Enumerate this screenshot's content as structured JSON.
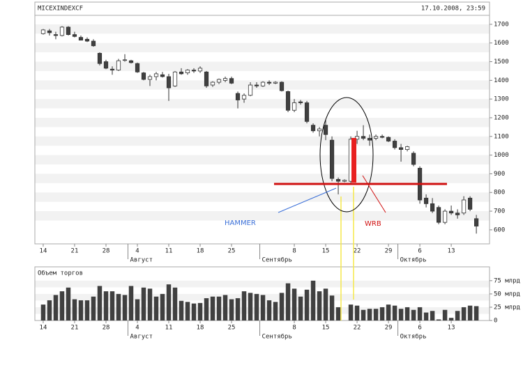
{
  "chart_data": [
    {
      "type": "candlestick",
      "title": "MICEXINDEXCF",
      "subtitle": "17.10.2008, 23:59",
      "open": [
        1650,
        1665,
        1645,
        1640,
        1685,
        1645,
        1630,
        1620,
        1610,
        1545,
        1500,
        1460,
        1455,
        1510,
        1505,
        1490,
        1440,
        1405,
        1420,
        1430,
        1420,
        1370,
        1445,
        1440,
        1455,
        1450,
        1445,
        1375,
        1390,
        1400,
        1410,
        1330,
        1300,
        1320,
        1375,
        1370,
        1390,
        1385,
        1390,
        1340,
        1240,
        1285,
        1280,
        1160,
        1130,
        1160,
        1080,
        870,
        860,
        860,
        1085,
        1100,
        1090,
        1090,
        1100,
        1095,
        1075,
        1040,
        1030,
        1010,
        930,
        770,
        740,
        720,
        640,
        700,
        690,
        690,
        770,
        660
      ],
      "high": [
        1675,
        1675,
        1660,
        1690,
        1690,
        1660,
        1640,
        1630,
        1620,
        1550,
        1510,
        1475,
        1515,
        1540,
        1510,
        1495,
        1445,
        1430,
        1445,
        1445,
        1435,
        1450,
        1465,
        1460,
        1465,
        1475,
        1450,
        1395,
        1410,
        1420,
        1420,
        1340,
        1330,
        1390,
        1390,
        1395,
        1400,
        1395,
        1395,
        1345,
        1300,
        1295,
        1290,
        1170,
        1150,
        1190,
        1100,
        880,
        870,
        1100,
        1130,
        1160,
        1110,
        1110,
        1110,
        1100,
        1085,
        1060,
        1050,
        1020,
        940,
        790,
        770,
        730,
        710,
        730,
        710,
        780,
        780,
        680
      ],
      "low": [
        1645,
        1640,
        1620,
        1635,
        1640,
        1630,
        1615,
        1605,
        1580,
        1480,
        1460,
        1430,
        1450,
        1500,
        1490,
        1440,
        1400,
        1370,
        1400,
        1415,
        1290,
        1365,
        1430,
        1430,
        1440,
        1440,
        1360,
        1365,
        1380,
        1390,
        1380,
        1250,
        1280,
        1315,
        1360,
        1365,
        1375,
        1380,
        1340,
        1230,
        1230,
        1270,
        1170,
        1120,
        1100,
        1080,
        860,
        790,
        855,
        850,
        1060,
        1080,
        1050,
        1080,
        1090,
        1070,
        1030,
        965,
        1020,
        940,
        740,
        720,
        690,
        630,
        630,
        680,
        660,
        680,
        700,
        580
      ],
      "close": [
        1670,
        1655,
        1640,
        1685,
        1645,
        1635,
        1615,
        1610,
        1585,
        1490,
        1465,
        1455,
        1505,
        1510,
        1495,
        1445,
        1405,
        1420,
        1435,
        1420,
        1360,
        1445,
        1435,
        1455,
        1450,
        1465,
        1370,
        1390,
        1405,
        1410,
        1385,
        1295,
        1320,
        1375,
        1370,
        1390,
        1385,
        1390,
        1345,
        1240,
        1280,
        1280,
        1180,
        1130,
        1140,
        1110,
        875,
        860,
        865,
        1085,
        1100,
        1090,
        1080,
        1100,
        1095,
        1075,
        1040,
        1030,
        1045,
        950,
        760,
        740,
        700,
        640,
        700,
        690,
        680,
        760,
        710,
        620
      ],
      "up_color": "#ffffff",
      "down_color": "#404040",
      "xlim": [
        -1.33,
        71.1
      ],
      "ylim": [
        525,
        1748
      ],
      "yticks": [
        600,
        700,
        800,
        900,
        1000,
        1100,
        1200,
        1300,
        1400,
        1500,
        1600,
        1700
      ],
      "xticks": [
        {
          "value": 0,
          "label": "14"
        },
        {
          "value": 5,
          "label": "21"
        },
        {
          "value": 10,
          "label": "28"
        },
        {
          "value": 15,
          "label": "4"
        },
        {
          "value": 20,
          "label": "11"
        },
        {
          "value": 25,
          "label": "18"
        },
        {
          "value": 30,
          "label": "25"
        },
        {
          "value": 40,
          "label": "8"
        },
        {
          "value": 45,
          "label": "15"
        },
        {
          "value": 50,
          "label": "22"
        },
        {
          "value": 55,
          "label": "29"
        },
        {
          "value": 60,
          "label": "6"
        },
        {
          "value": 65,
          "label": "13"
        }
      ],
      "months": [
        {
          "value": 14,
          "label": "Август"
        },
        {
          "value": 35,
          "label": "Сентябрь"
        },
        {
          "value": 57,
          "label": "Октябрь"
        }
      ],
      "annotations": [
        "HAMMER",
        "WRB"
      ]
    },
    {
      "type": "bar",
      "title": "Объем торгов",
      "values": [
        30,
        38,
        48,
        55,
        62,
        40,
        38,
        38,
        45,
        65,
        55,
        55,
        50,
        48,
        65,
        40,
        62,
        60,
        45,
        50,
        68,
        62,
        37,
        35,
        32,
        33,
        42,
        45,
        45,
        48,
        40,
        42,
        55,
        52,
        50,
        48,
        38,
        35,
        52,
        70,
        60,
        45,
        58,
        75,
        55,
        60,
        47,
        25,
        null,
        30,
        28,
        20,
        22,
        22,
        25,
        30,
        28,
        22,
        25,
        20,
        25,
        15,
        18,
        2,
        20,
        5,
        18,
        25,
        28,
        27
      ],
      "color": "#404040",
      "xlim": [
        -1.33,
        71.1
      ],
      "ylim": [
        0,
        101
      ],
      "yticks": [
        0,
        {
          "value": 25,
          "label": "25 млрд"
        },
        {
          "value": 50,
          "label": "50 млрд"
        },
        {
          "value": 75,
          "label": "75 млрд"
        }
      ],
      "xticks": [
        {
          "value": 0,
          "label": "14"
        },
        {
          "value": 5,
          "label": "21"
        },
        {
          "value": 10,
          "label": "28"
        },
        {
          "value": 15,
          "label": "4"
        },
        {
          "value": 20,
          "label": "11"
        },
        {
          "value": 25,
          "label": "18"
        },
        {
          "value": 30,
          "label": "25"
        },
        {
          "value": 40,
          "label": "8"
        },
        {
          "value": 45,
          "label": "15"
        },
        {
          "value": 50,
          "label": "22"
        },
        {
          "value": 55,
          "label": "29"
        },
        {
          "value": 60,
          "label": "6"
        },
        {
          "value": 65,
          "label": "13"
        }
      ],
      "months": [
        {
          "value": 14,
          "label": "Август"
        },
        {
          "value": 35,
          "label": "Сентябрь"
        },
        {
          "value": 57,
          "label": "Октябрь"
        }
      ]
    }
  ]
}
